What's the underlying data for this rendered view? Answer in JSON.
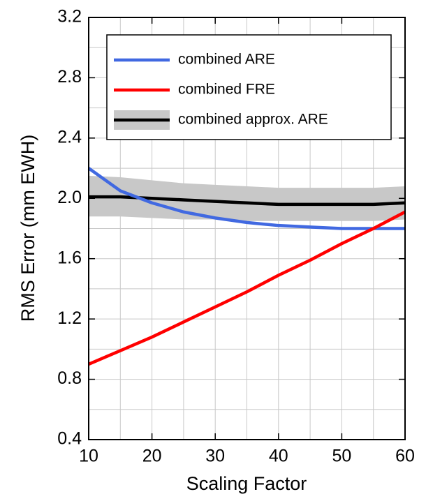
{
  "chart_data": {
    "type": "line",
    "xlabel": "Scaling Factor",
    "ylabel": "RMS Error (mm EWH)",
    "x": [
      10,
      15,
      20,
      25,
      30,
      35,
      40,
      45,
      50,
      55,
      60
    ],
    "xlim": [
      10,
      60
    ],
    "ylim": [
      0.4,
      3.2
    ],
    "xticks": [
      10,
      20,
      30,
      40,
      50,
      60
    ],
    "yticks": [
      0.4,
      0.8,
      1.2,
      1.6,
      {
        "value": 2,
        "label": "2.0"
      },
      2.4,
      2.8,
      3.2
    ],
    "x_minor_grid": [
      15,
      25,
      35,
      45,
      55
    ],
    "y_minor_grid": [
      0.6,
      1.0,
      1.4,
      1.8,
      2.2,
      2.6,
      3.0
    ],
    "grid": true,
    "legend": "upper right",
    "series": [
      {
        "name": "combined ARE",
        "color": "#4169e1",
        "values": [
          2.2,
          2.05,
          1.97,
          1.91,
          1.87,
          1.84,
          1.82,
          1.81,
          1.8,
          1.8,
          1.8
        ]
      },
      {
        "name": "combined FRE",
        "color": "#ff0000",
        "values": [
          0.9,
          0.99,
          1.08,
          1.18,
          1.28,
          1.38,
          1.49,
          1.59,
          1.7,
          1.8,
          1.91
        ]
      },
      {
        "name": "combined approx. ARE",
        "color": "#000000",
        "band_color": "#c8c8c8",
        "values": [
          2.01,
          2.01,
          2.0,
          1.99,
          1.98,
          1.97,
          1.96,
          1.96,
          1.96,
          1.96,
          1.97
        ],
        "lower": [
          1.88,
          1.88,
          1.87,
          1.86,
          1.86,
          1.85,
          1.85,
          1.85,
          1.85,
          1.85,
          1.86
        ],
        "upper": [
          2.15,
          2.14,
          2.12,
          2.1,
          2.09,
          2.08,
          2.07,
          2.07,
          2.07,
          2.07,
          2.08
        ]
      }
    ]
  }
}
